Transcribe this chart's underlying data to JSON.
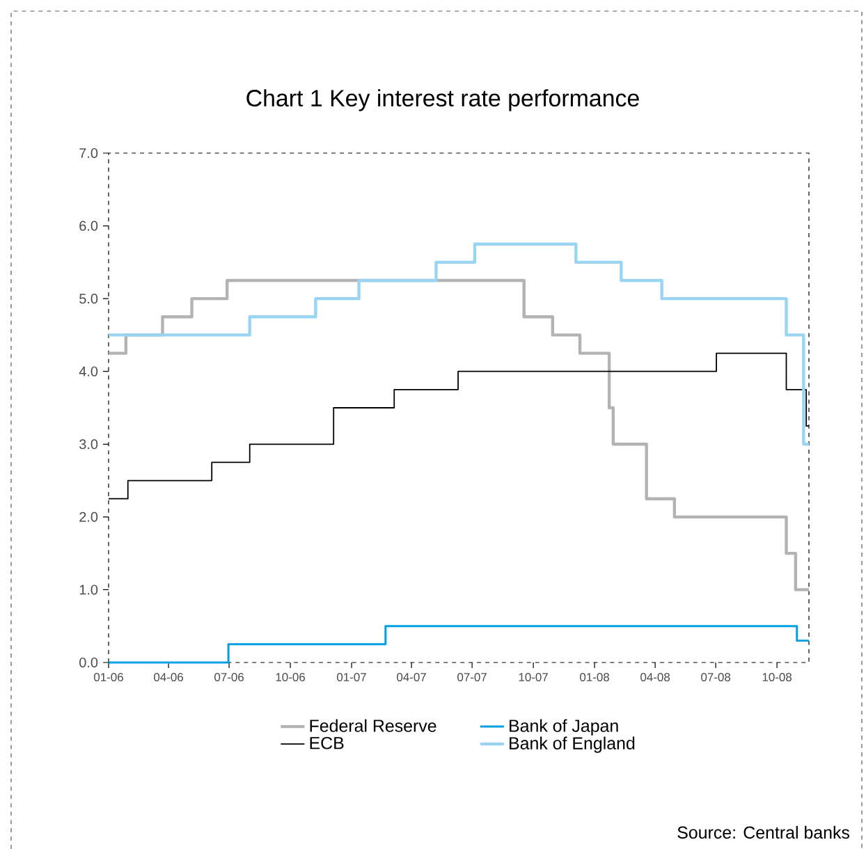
{
  "chart_data": {
    "type": "step",
    "title": "Chart 1 Key interest rate performance",
    "annotations": [
      "Source: Central banks"
    ],
    "xlim": [
      "2006-01-01",
      "2008-11-18"
    ],
    "xticks": [
      {
        "value": "2006-01-01",
        "label": "01-06"
      },
      {
        "value": "2006-04-01",
        "label": "04-06"
      },
      {
        "value": "2006-07-01",
        "label": "07-06"
      },
      {
        "value": "2006-10-01",
        "label": "10-06"
      },
      {
        "value": "2007-01-01",
        "label": "01-07"
      },
      {
        "value": "2007-04-01",
        "label": "04-07"
      },
      {
        "value": "2007-07-01",
        "label": "07-07"
      },
      {
        "value": "2007-10-01",
        "label": "10-07"
      },
      {
        "value": "2008-01-01",
        "label": "01-08"
      },
      {
        "value": "2008-04-01",
        "label": "04-08"
      },
      {
        "value": "2008-07-01",
        "label": "07-08"
      },
      {
        "value": "2008-10-01",
        "label": "10-08"
      }
    ],
    "ylim": [
      0,
      7
    ],
    "yticks": [
      {
        "value": 0,
        "label": "0.0"
      },
      {
        "value": 1,
        "label": "1.0"
      },
      {
        "value": 2,
        "label": "2.0"
      },
      {
        "value": 3,
        "label": "3.0"
      },
      {
        "value": 4,
        "label": "4.0"
      },
      {
        "value": 5,
        "label": "5.0"
      },
      {
        "value": 6,
        "label": "6.0"
      },
      {
        "value": 7,
        "label": "7.0"
      }
    ],
    "legend": "bottom",
    "series": [
      {
        "name": "Federal Reserve",
        "color": "#b3b3b3",
        "x": [
          "2006-01-01",
          "2006-01-27",
          "2006-03-23",
          "2006-05-06",
          "2006-06-28",
          "2007-09-17",
          "2007-10-30",
          "2007-12-10",
          "2008-01-23",
          "2008-01-29",
          "2008-03-19",
          "2008-04-30",
          "2008-10-15",
          "2008-10-29",
          "2008-11-18"
        ],
        "values": [
          4.25,
          4.5,
          4.75,
          5.0,
          5.25,
          4.75,
          4.5,
          4.25,
          3.5,
          3.0,
          2.25,
          2.0,
          1.5,
          1.0,
          1.0
        ]
      },
      {
        "name": "ECB",
        "color": "#000000",
        "x": [
          "2006-01-01",
          "2006-01-30",
          "2006-06-05",
          "2006-08-01",
          "2006-12-05",
          "2007-03-06",
          "2007-06-10",
          "2008-07-02",
          "2008-10-15",
          "2008-11-14",
          "2008-11-18"
        ],
        "values": [
          2.25,
          2.5,
          2.75,
          3.0,
          3.5,
          3.75,
          4.0,
          4.25,
          3.75,
          3.25,
          3.25
        ]
      },
      {
        "name": "Bank of Japan",
        "color": "#009fe3",
        "x": [
          "2006-01-01",
          "2006-06-30",
          "2007-02-21",
          "2008-10-31",
          "2008-11-18"
        ],
        "values": [
          0.0,
          0.25,
          0.5,
          0.3,
          0.3
        ]
      },
      {
        "name": "Bank of England",
        "color": "#99d5f2",
        "x": [
          "2006-01-01",
          "2006-08-01",
          "2006-11-08",
          "2007-01-12",
          "2007-05-08",
          "2007-07-05",
          "2007-12-04",
          "2008-02-10",
          "2008-04-11",
          "2008-10-15",
          "2008-11-10",
          "2008-11-18"
        ],
        "values": [
          4.5,
          4.75,
          5.0,
          5.25,
          5.5,
          5.75,
          5.5,
          5.25,
          5.0,
          4.5,
          3.0,
          3.0
        ]
      }
    ]
  }
}
